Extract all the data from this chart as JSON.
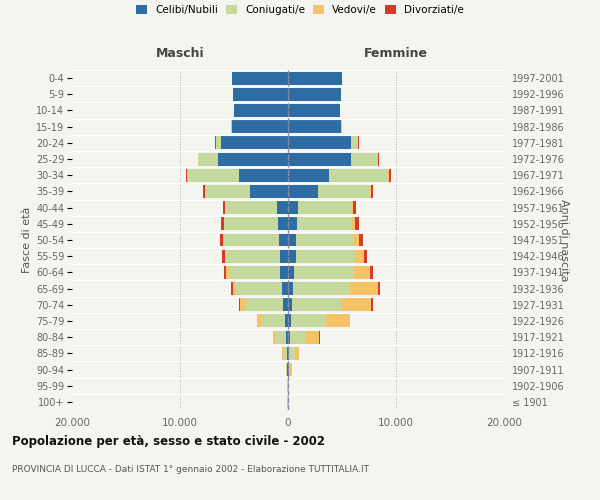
{
  "age_groups": [
    "100+",
    "95-99",
    "90-94",
    "85-89",
    "80-84",
    "75-79",
    "70-74",
    "65-69",
    "60-64",
    "55-59",
    "50-54",
    "45-49",
    "40-44",
    "35-39",
    "30-34",
    "25-29",
    "20-24",
    "15-19",
    "10-14",
    "5-9",
    "0-4"
  ],
  "birth_years": [
    "≤ 1901",
    "1902-1906",
    "1907-1911",
    "1912-1916",
    "1917-1921",
    "1922-1926",
    "1927-1931",
    "1932-1936",
    "1937-1941",
    "1942-1946",
    "1947-1951",
    "1952-1956",
    "1957-1961",
    "1962-1966",
    "1967-1971",
    "1972-1976",
    "1977-1981",
    "1982-1986",
    "1987-1991",
    "1992-1996",
    "1997-2001"
  ],
  "males": {
    "celibi": [
      20,
      30,
      50,
      80,
      200,
      300,
      500,
      600,
      700,
      750,
      800,
      900,
      1000,
      3500,
      4500,
      6500,
      6200,
      5200,
      5000,
      5100,
      5200
    ],
    "coniugati": [
      30,
      50,
      120,
      350,
      1000,
      2200,
      3500,
      4200,
      4800,
      5000,
      5100,
      5000,
      4800,
      4200,
      4800,
      1800,
      500,
      30,
      10,
      5,
      5
    ],
    "vedovi": [
      5,
      10,
      30,
      80,
      200,
      350,
      400,
      300,
      200,
      120,
      80,
      60,
      40,
      30,
      20,
      10,
      5,
      5,
      0,
      0,
      0
    ],
    "divorziati": [
      0,
      0,
      5,
      10,
      20,
      50,
      100,
      150,
      200,
      250,
      300,
      280,
      150,
      120,
      100,
      50,
      20,
      5,
      0,
      0,
      0
    ]
  },
  "females": {
    "nubili": [
      20,
      40,
      80,
      120,
      200,
      300,
      400,
      500,
      600,
      700,
      750,
      850,
      900,
      2800,
      3800,
      5800,
      5800,
      4900,
      4800,
      4900,
      5000
    ],
    "coniugate": [
      30,
      60,
      150,
      500,
      1500,
      3200,
      4500,
      5200,
      5500,
      5500,
      5300,
      5100,
      5000,
      4800,
      5500,
      2500,
      700,
      60,
      15,
      5,
      5
    ],
    "vedove": [
      10,
      30,
      100,
      400,
      1200,
      2200,
      2800,
      2600,
      1500,
      800,
      500,
      280,
      150,
      80,
      50,
      20,
      10,
      5,
      0,
      0,
      0
    ],
    "divorziate": [
      0,
      0,
      5,
      15,
      30,
      80,
      150,
      200,
      300,
      350,
      350,
      320,
      200,
      180,
      200,
      80,
      30,
      5,
      0,
      0,
      0
    ]
  },
  "colors": {
    "celibi": "#2e6da4",
    "coniugati": "#c5d89d",
    "vedovi": "#f5c265",
    "divorziati": "#d63b2a"
  },
  "xlim": 20000,
  "xticks": [
    -20000,
    -10000,
    0,
    10000,
    20000
  ],
  "xticklabels": [
    "20.000",
    "10.000",
    "0",
    "10.000",
    "20.000"
  ],
  "title_main": "Popolazione per età, sesso e stato civile - 2002",
  "title_sub": "PROVINCIA DI LUCCA - Dati ISTAT 1° gennaio 2002 - Elaborazione TUTTITALIA.IT",
  "ylabel_left": "Fasce di età",
  "ylabel_right": "Anni di nascita",
  "maschi_label": "Maschi",
  "femmine_label": "Femmine",
  "legend_labels": [
    "Celibi/Nubili",
    "Coniugati/e",
    "Vedovi/e",
    "Divorziati/e"
  ],
  "background_color": "#f5f5f0"
}
